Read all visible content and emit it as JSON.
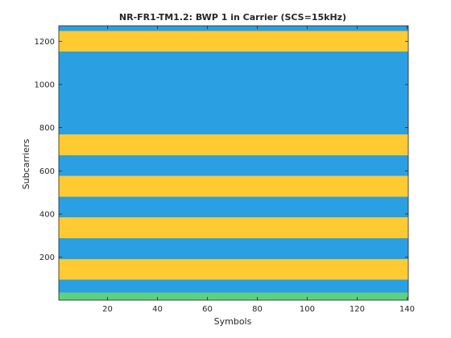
{
  "chart_data": {
    "type": "heatmap",
    "title": "NR-FR1-TM1.2: BWP 1 in Carrier (SCS=15kHz)",
    "xlabel": "Symbols",
    "ylabel": "Subcarriers",
    "xlim": [
      0.5,
      140.5
    ],
    "ylim": [
      1,
      1272
    ],
    "xticks": [
      20,
      40,
      60,
      80,
      100,
      120,
      140
    ],
    "yticks": [
      200,
      400,
      600,
      800,
      1000,
      1200
    ],
    "grid": false,
    "legend": "none",
    "colors": {
      "blue": "#2A9FE2",
      "yellow": "#FFCA32",
      "green": "#5FD07E",
      "axis": "#262626"
    },
    "bands": [
      {
        "y0": 1,
        "y1": 36,
        "color": "green"
      },
      {
        "y0": 36,
        "y1": 96,
        "color": "blue"
      },
      {
        "y0": 96,
        "y1": 192,
        "color": "yellow"
      },
      {
        "y0": 192,
        "y1": 288,
        "color": "blue"
      },
      {
        "y0": 288,
        "y1": 384,
        "color": "yellow"
      },
      {
        "y0": 384,
        "y1": 480,
        "color": "blue"
      },
      {
        "y0": 480,
        "y1": 576,
        "color": "yellow"
      },
      {
        "y0": 576,
        "y1": 672,
        "color": "blue"
      },
      {
        "y0": 672,
        "y1": 768,
        "color": "yellow"
      },
      {
        "y0": 768,
        "y1": 1152,
        "color": "blue"
      },
      {
        "y0": 1152,
        "y1": 1248,
        "color": "yellow"
      },
      {
        "y0": 1248,
        "y1": 1272,
        "color": "blue"
      }
    ]
  }
}
